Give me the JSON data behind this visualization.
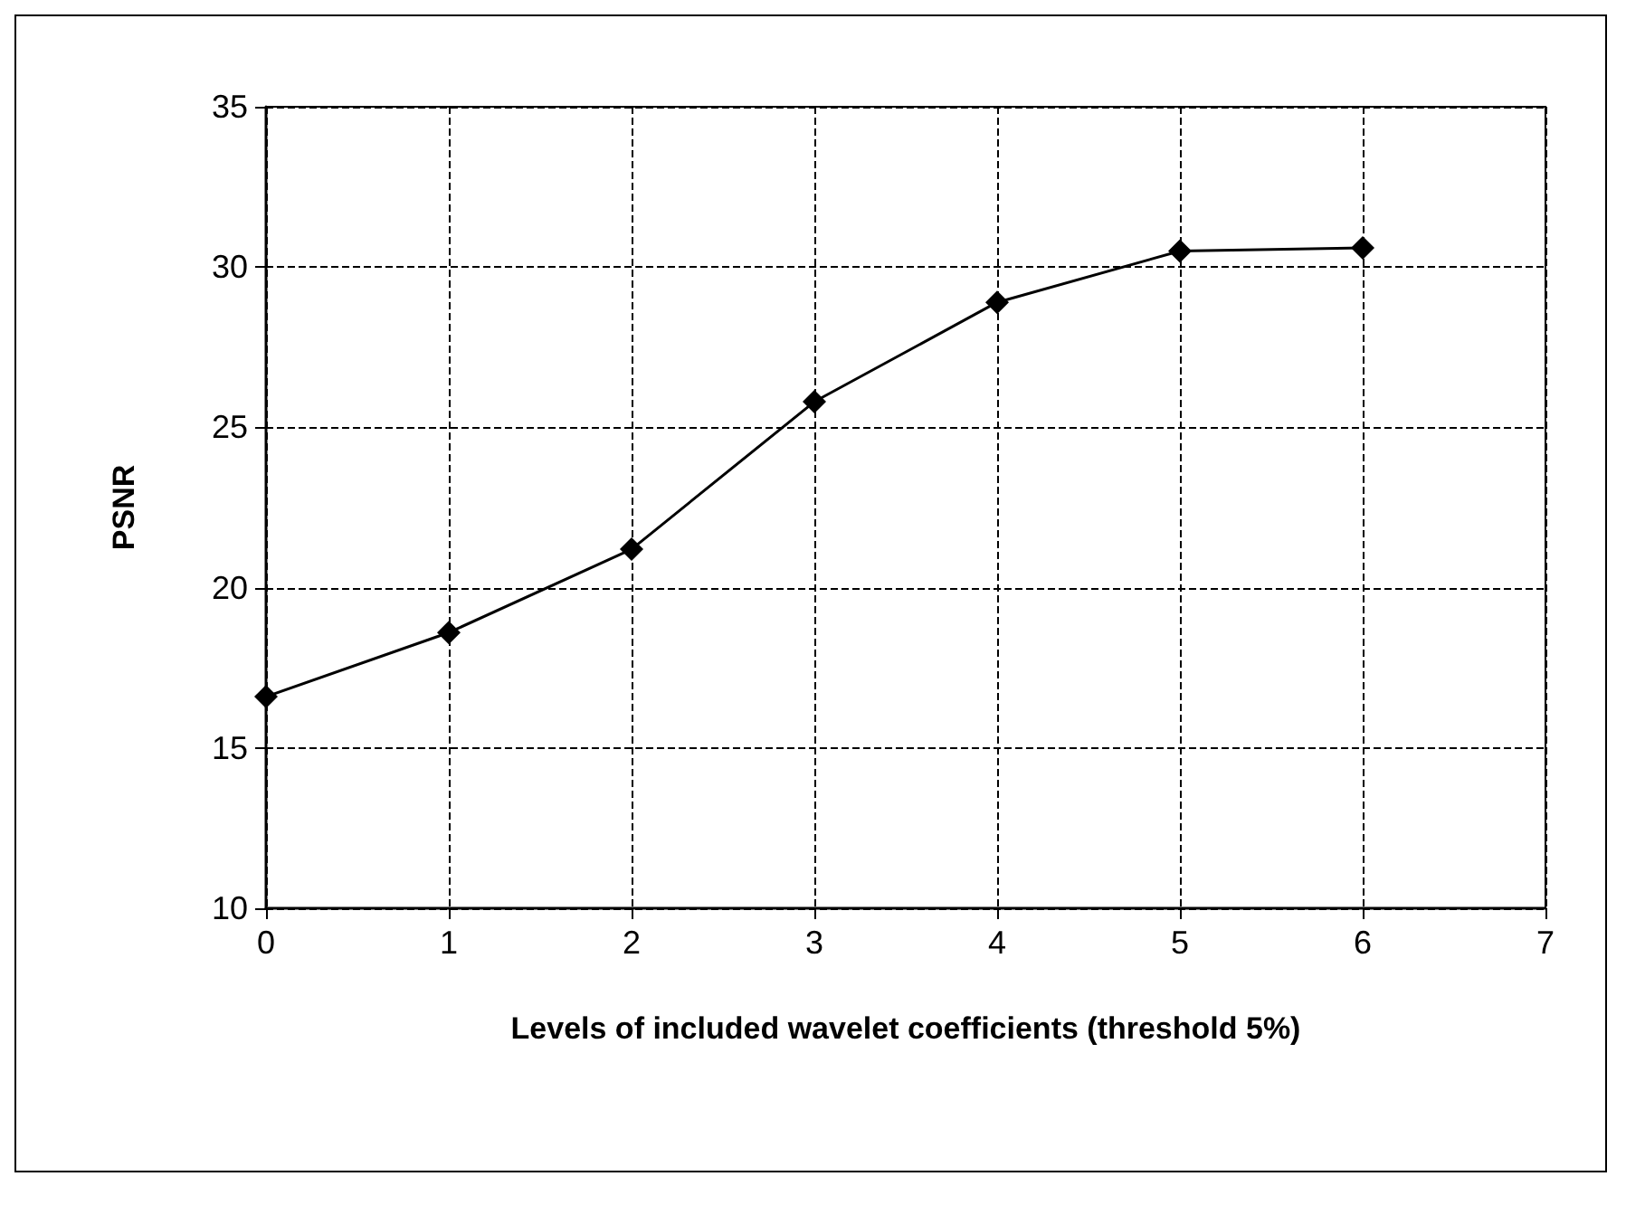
{
  "chart_data": {
    "type": "line",
    "xlabel": "Levels of included wavelet coefficients (threshold 5%)",
    "ylabel": "PSNR",
    "x": [
      0,
      1,
      2,
      3,
      4,
      5,
      6
    ],
    "series": [
      {
        "color": "#000000",
        "values": [
          16.6,
          18.6,
          21.2,
          25.8,
          28.9,
          30.5,
          30.6
        ]
      }
    ],
    "xlim": [
      0,
      7
    ],
    "xticks": [
      0,
      1,
      2,
      3,
      4,
      5,
      6,
      7
    ],
    "ylim": [
      10,
      35
    ],
    "yticks": [
      10,
      15,
      20,
      25,
      30,
      35
    ],
    "grid": true,
    "marker": "diamond",
    "line_style": "solid"
  }
}
